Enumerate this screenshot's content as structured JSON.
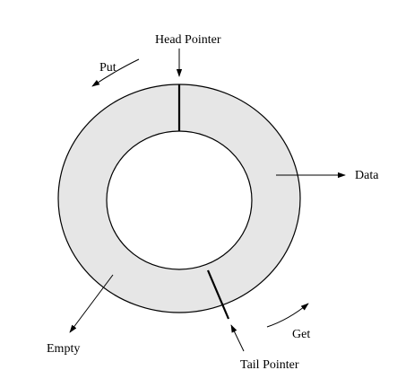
{
  "labels": {
    "head_pointer": "Head Pointer",
    "put": "Put",
    "data": "Data",
    "get": "Get",
    "tail_pointer": "Tail Pointer",
    "empty": "Empty"
  },
  "colors": {
    "ring_fill": "#e6e6e6",
    "stroke": "#000000",
    "background": "#ffffff"
  }
}
